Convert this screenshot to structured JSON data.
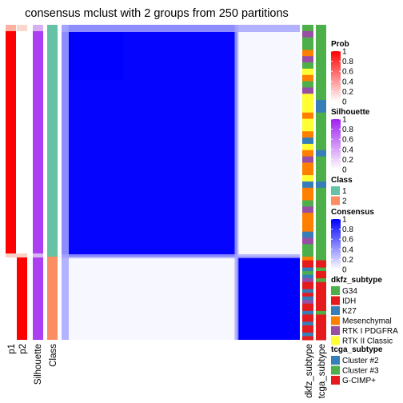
{
  "title": "consensus mclust with 2 groups from 250 partitions",
  "chart_data": {
    "type": "heatmap",
    "title": "consensus mclust with 2 groups from 250 partitions",
    "n_groups": 2,
    "group_split_fraction": 0.736,
    "annotation_columns": [
      "p1",
      "p2",
      "Silhouette",
      "Class"
    ],
    "right_annotation_columns": [
      "dkfz_subtype",
      "tcga_subtype"
    ],
    "consensus_matrix": {
      "group_1_within": 1.0,
      "group_2_within": 1.0,
      "between_groups": 0.03,
      "border_rows_value": 0.35
    },
    "annotations": {
      "group_1": {
        "p1": 1.0,
        "p2": 0.0,
        "silhouette": 0.86,
        "class": 1
      },
      "group_2": {
        "p1": 0.0,
        "p2": 1.0,
        "silhouette": 0.86,
        "class": 2
      }
    },
    "dkfz_subtype_group_1": [
      "G34",
      "RTK I PDGFRA",
      "G34",
      "G34",
      "Mesenchymal",
      "RTK I PDGFRA",
      "G34",
      "RTK II Classic",
      "Mesenchymal",
      "G34",
      "RTK I PDGFRA",
      "RTK II Classic",
      "RTK II Classic",
      "RTK II Classic",
      "Mesenchymal",
      "RTK II Classic",
      "RTK II Classic",
      "Mesenchymal",
      "K27",
      "RTK II Classic",
      "Mesenchymal",
      "RTK I PDGFRA",
      "Mesenchymal",
      "Mesenchymal",
      "RTK II Classic",
      "K27",
      "Mesenchymal",
      "Mesenchymal",
      "G34",
      "RTK I PDGFRA",
      "Mesenchymal",
      "Mesenchymal",
      "Mesenchymal",
      "K27",
      "RTK I PDGFRA",
      "G34",
      "G34"
    ],
    "tcga_subtype_group_1": [
      "Cluster #3",
      "Cluster #3",
      "Cluster #3",
      "Cluster #3",
      "Cluster #3",
      "Cluster #3",
      "Cluster #3",
      "Cluster #3",
      "Cluster #3",
      "Cluster #3",
      "Cluster #3",
      "Cluster #3",
      "Cluster #2",
      "Cluster #2",
      "Cluster #3",
      "Cluster #3",
      "Cluster #3",
      "Cluster #3",
      "Cluster #3",
      "Cluster #3",
      "Cluster #2",
      "Cluster #3",
      "Cluster #3",
      "Cluster #3",
      "Cluster #3",
      "Cluster #2",
      "Cluster #3",
      "Cluster #3",
      "Cluster #3",
      "Cluster #3",
      "Cluster #3",
      "Cluster #3",
      "Cluster #3",
      "Cluster #3",
      "Cluster #3",
      "Cluster #3",
      "Cluster #3"
    ],
    "dkfz_subtype_group_2": [
      "Mesenchymal",
      "IDH",
      "IDH",
      "K27",
      "G34",
      "K27",
      "RTK I PDGFRA",
      "IDH",
      "IDH",
      "K27",
      "IDH",
      "K27",
      "RTK I PDGFRA",
      "IDH",
      "IDH",
      "K27",
      "IDH",
      "IDH",
      "K27",
      "IDH",
      "IDH",
      "K27",
      "IDH"
    ],
    "tcga_subtype_group_2": [
      "Cluster #3",
      "G-CIMP+",
      "G-CIMP+",
      "Cluster #3",
      "G-CIMP+",
      "G-CIMP+",
      "Cluster #3",
      "G-CIMP+",
      "G-CIMP+",
      "G-CIMP+",
      "G-CIMP+",
      "G-CIMP+",
      "G-CIMP+",
      "G-CIMP+",
      "G-CIMP+",
      "Cluster #3",
      "G-CIMP+",
      "G-CIMP+",
      "G-CIMP+",
      "G-CIMP+",
      "G-CIMP+",
      "G-CIMP+",
      "G-CIMP+"
    ]
  },
  "legends": {
    "prob": {
      "title": "Prob",
      "ticks": [
        "1",
        "0.8",
        "0.6",
        "0.4",
        "0.2",
        "0"
      ],
      "colors": [
        "#ff0000",
        "#ffffff"
      ]
    },
    "silhouette": {
      "title": "Silhouette",
      "ticks": [
        "1",
        "0.8",
        "0.6",
        "0.4",
        "0.2",
        "0"
      ],
      "colors": [
        "#a020f0",
        "#ffffff"
      ]
    },
    "class": {
      "title": "Class",
      "items": [
        {
          "label": "1",
          "color": "#66c2a5"
        },
        {
          "label": "2",
          "color": "#fc8d62"
        }
      ]
    },
    "consensus": {
      "title": "Consensus",
      "ticks": [
        "1",
        "0.8",
        "0.6",
        "0.4",
        "0.2",
        "0"
      ],
      "colors": [
        "#0000ff",
        "#ffffff"
      ]
    },
    "dkfz_subtype": {
      "title": "dkfz_subtype",
      "items": [
        {
          "label": "G34",
          "color": "#4daf4a"
        },
        {
          "label": "IDH",
          "color": "#e41a1c"
        },
        {
          "label": "K27",
          "color": "#377eb8"
        },
        {
          "label": "Mesenchymal",
          "color": "#ff7f00"
        },
        {
          "label": "RTK I PDGFRA",
          "color": "#984ea3"
        },
        {
          "label": "RTK II Classic",
          "color": "#ffff33"
        }
      ]
    },
    "tcga_subtype": {
      "title": "tcga_subtype",
      "items": [
        {
          "label": "Cluster #2",
          "color": "#377eb8"
        },
        {
          "label": "Cluster #3",
          "color": "#4daf4a"
        },
        {
          "label": "G-CIMP+",
          "color": "#e41a1c"
        }
      ]
    }
  }
}
